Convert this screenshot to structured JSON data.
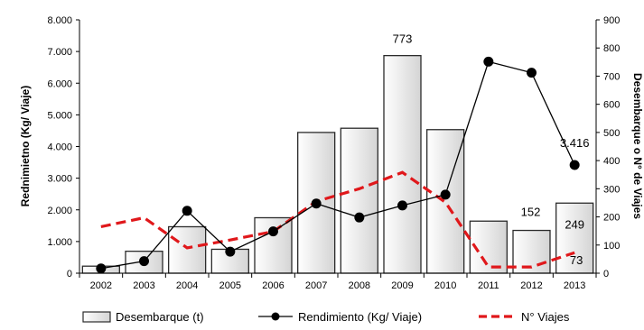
{
  "chart_data": {
    "type": "bar",
    "x": [
      "2002",
      "2003",
      "2004",
      "2005",
      "2006",
      "2007",
      "2008",
      "2009",
      "2010",
      "2011",
      "2012",
      "2013"
    ],
    "ylabel_left": "Rednimietno (Kg/ Viaje)",
    "ylabel_right": "Desembarque o N° de Viajes",
    "ylim_left": [
      0,
      8000
    ],
    "ylim_right": [
      0,
      900
    ],
    "yticks_left": [
      "0",
      "1.000",
      "2.000",
      "3.000",
      "4.000",
      "5.000",
      "6.000",
      "7.000",
      "8.000"
    ],
    "yticks_right": [
      "0",
      "100",
      "200",
      "300",
      "400",
      "500",
      "600",
      "700",
      "800",
      "900"
    ],
    "grid": false,
    "legend_position": "bottom",
    "series": [
      {
        "name": "Desembarque (t)",
        "type": "bar",
        "axis": "right",
        "values": [
          25,
          78,
          165,
          85,
          197,
          500,
          515,
          773,
          510,
          185,
          152,
          249
        ],
        "color": "#e6e6e6"
      },
      {
        "name": "Rendimiento (Kg/ Viaje)",
        "type": "line",
        "axis": "left",
        "marker": "circle",
        "values": [
          150,
          380,
          1970,
          680,
          1320,
          2200,
          1760,
          2140,
          2480,
          6680,
          6330,
          3416
        ],
        "color": "#000000"
      },
      {
        "name": "N° Viajes",
        "type": "line",
        "axis": "right",
        "dashed": true,
        "values": [
          165,
          197,
          90,
          118,
          148,
          255,
          300,
          358,
          252,
          22,
          22,
          73
        ],
        "color": "#e0181b"
      }
    ],
    "annotations": [
      "773",
      "3.416",
      "152",
      "249",
      "73"
    ]
  }
}
